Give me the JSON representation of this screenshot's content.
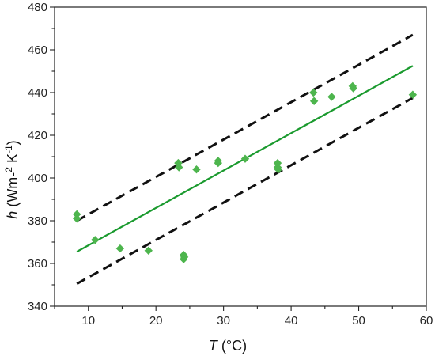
{
  "chart_data": {
    "type": "scatter",
    "title": "",
    "xlabel": {
      "symbol": "T",
      "unit": " (°C)"
    },
    "ylabel": {
      "symbol": "h",
      "unit_main": " (Wm-",
      "exp1": "2",
      "unit_mid": " K",
      "exp2": "-1",
      "unit_end": ")"
    },
    "xlim": [
      5,
      60
    ],
    "ylim": [
      340,
      480
    ],
    "xticks": [
      10,
      20,
      30,
      40,
      50,
      60
    ],
    "yticks": [
      340,
      360,
      380,
      400,
      420,
      440,
      460,
      480
    ],
    "grid": false,
    "legend": "none",
    "colors": {
      "points": "#4db54d",
      "fit": "#1a9a2e",
      "bounds": "#111111",
      "axes": "#222222"
    },
    "series": [
      {
        "kind": "scatter",
        "marker": "diamond",
        "x": [
          8.3,
          8.3,
          11.0,
          14.7,
          18.9,
          23.3,
          23.4,
          24.1,
          24.1,
          24.2,
          26.0,
          29.2,
          29.2,
          33.2,
          38.0,
          38.0,
          38.1,
          43.3,
          43.4,
          46.0,
          49.1,
          49.2,
          58.0
        ],
        "y": [
          383,
          381,
          371,
          367,
          366,
          407,
          405,
          362,
          364,
          363,
          404,
          408,
          407,
          409,
          407,
          405,
          404,
          440,
          436,
          438,
          443,
          442,
          439
        ]
      },
      {
        "kind": "line",
        "style": "solid",
        "x": [
          8.3,
          58.0
        ],
        "y": [
          365.5,
          452.5
        ]
      },
      {
        "kind": "line",
        "style": "dashed",
        "x": [
          8.3,
          58.0
        ],
        "y": [
          380.0,
          467.0
        ]
      },
      {
        "kind": "line",
        "style": "dashed",
        "x": [
          8.3,
          58.0
        ],
        "y": [
          350.5,
          437.5
        ]
      }
    ]
  }
}
